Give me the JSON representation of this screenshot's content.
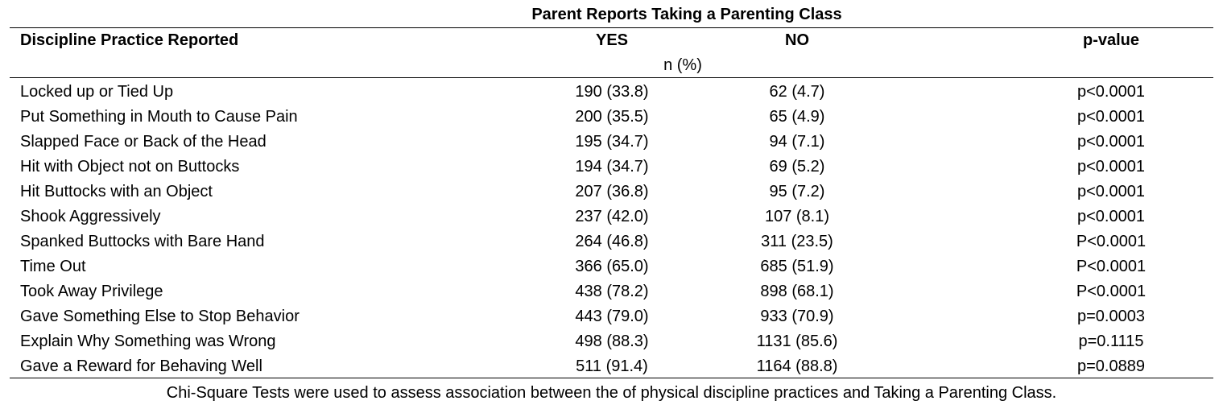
{
  "table": {
    "group_header": "Parent Reports Taking a Parenting Class",
    "columns": {
      "practice": "Discipline Practice Reported",
      "yes": "YES",
      "no": "NO",
      "p_value": "p-value"
    },
    "unit_label": "n (%)",
    "rows": [
      {
        "practice": "Locked up or Tied Up",
        "yes": "190 (33.8)",
        "no": "62 (4.7)",
        "p": "p<0.0001"
      },
      {
        "practice": "Put Something in Mouth to Cause Pain",
        "yes": "200 (35.5)",
        "no": "65 (4.9)",
        "p": "p<0.0001"
      },
      {
        "practice": "Slapped Face or Back of the Head",
        "yes": "195 (34.7)",
        "no": "94 (7.1)",
        "p": "p<0.0001"
      },
      {
        "practice": "Hit with Object not on Buttocks",
        "yes": "194 (34.7)",
        "no": "69 (5.2)",
        "p": "p<0.0001"
      },
      {
        "practice": "Hit Buttocks with an Object",
        "yes": "207 (36.8)",
        "no": "95 (7.2)",
        "p": "p<0.0001"
      },
      {
        "practice": "Shook Aggressively",
        "yes": "237 (42.0)",
        "no": "107 (8.1)",
        "p": "p<0.0001"
      },
      {
        "practice": "Spanked Buttocks with Bare Hand",
        "yes": "264 (46.8)",
        "no": "311 (23.5)",
        "p": "P<0.0001"
      },
      {
        "practice": "Time Out",
        "yes": "366 (65.0)",
        "no": "685 (51.9)",
        "p": "P<0.0001"
      },
      {
        "practice": "Took Away Privilege",
        "yes": "438 (78.2)",
        "no": "898 (68.1)",
        "p": "P<0.0001"
      },
      {
        "practice": "Gave Something Else to Stop Behavior",
        "yes": "443 (79.0)",
        "no": "933 (70.9)",
        "p": "p=0.0003"
      },
      {
        "practice": "Explain Why Something was Wrong",
        "yes": "498 (88.3)",
        "no": "1131 (85.6)",
        "p": "p=0.1115"
      },
      {
        "practice": "Gave a Reward for Behaving Well",
        "yes": "511 (91.4)",
        "no": "1164 (88.8)",
        "p": "p=0.0889"
      }
    ],
    "footnote": "Chi-Square Tests were used to assess association between the of physical discipline practices and Taking a Parenting Class."
  }
}
